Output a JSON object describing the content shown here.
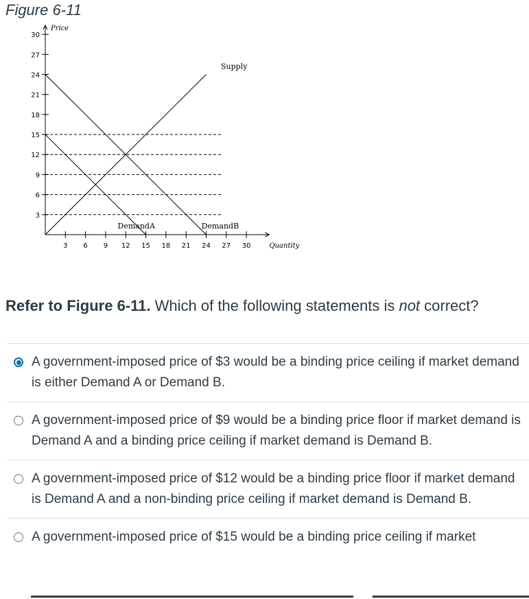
{
  "figure": {
    "title": "Figure 6-11"
  },
  "chart_data": {
    "type": "line",
    "xlabel": "Quantity",
    "ylabel": "Price",
    "x_ticks": [
      3,
      6,
      9,
      12,
      15,
      18,
      21,
      24,
      27,
      30
    ],
    "y_ticks": [
      3,
      6,
      9,
      12,
      15,
      18,
      21,
      24,
      27,
      30
    ],
    "xlim": [
      0,
      33
    ],
    "ylim": [
      0,
      30
    ],
    "series": [
      {
        "name": "Supply",
        "points": [
          [
            0,
            0
          ],
          [
            24,
            24
          ]
        ]
      },
      {
        "name": "DemandA",
        "points": [
          [
            0,
            15
          ],
          [
            15,
            0
          ]
        ]
      },
      {
        "name": "DemandB",
        "points": [
          [
            0,
            24
          ],
          [
            24,
            0
          ]
        ]
      }
    ],
    "dashed_price_levels": [
      3,
      6,
      9,
      12,
      15
    ],
    "grid": false
  },
  "question": {
    "prefix": "Refer to Figure 6-11.",
    "text_before": " Which of the following statements is ",
    "emphasis": "not",
    "text_after": " correct?"
  },
  "answers": [
    {
      "text": "A government-imposed price of $3 would be a binding price ceiling if market demand is either Demand A or Demand B.",
      "selected": true
    },
    {
      "text": "A government-imposed price of $9 would be a binding price floor if market demand is Demand A and a binding price ceiling if market demand is Demand B.",
      "selected": false
    },
    {
      "text": "A government-imposed price of $12 would be a binding price floor if market demand is Demand A and a non-binding price ceiling if market demand is Demand B.",
      "selected": false
    },
    {
      "text": "A government-imposed price of $15 would be a binding price ceiling if market",
      "selected": false
    }
  ],
  "colors": {
    "accent": "#0770a3",
    "text": "#2d3b45",
    "divider": "#dcdfe2"
  }
}
